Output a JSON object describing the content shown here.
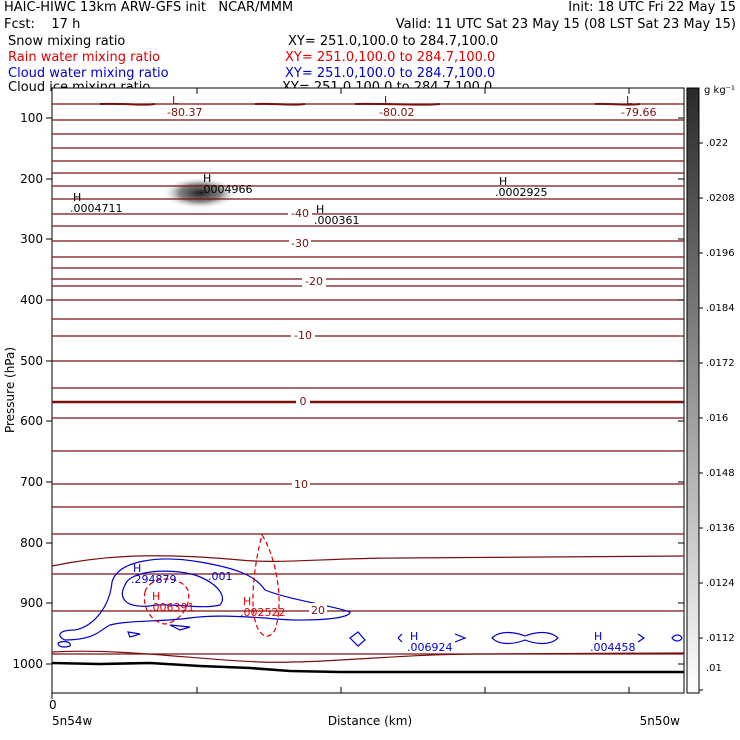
{
  "header": {
    "title": "HAIC-HIWC 13km ARW-GFS init   NCAR/MMM",
    "init": "Init: 18 UTC Fri 22 May 15",
    "fcst": "Fcst:    17 h",
    "valid": "Valid: 11 UTC Sat 23 May 15 (08 LST Sat 23 May 15)",
    "fields": [
      {
        "label": "Snow mixing ratio",
        "xy": "XY= 251.0,100.0 to 284.7,100.0",
        "color": "#000000"
      },
      {
        "label": "Rain water mixing ratio",
        "xy": "XY= 251.0,100.0 to 284.7,100.0",
        "color": "#e00000"
      },
      {
        "label": "Cloud water mixing ratio",
        "xy": "XY= 251.0,100.0 to 284.7,100.0",
        "color": "#0000cc"
      },
      {
        "label": "Cloud ice mixing ratio",
        "xy": "XY= 251.0,100.0 to 284.7,100.0",
        "color": "#000000"
      }
    ]
  },
  "chart_data": {
    "type": "cross-section",
    "xlabel": "Distance (km)",
    "ylabel": "Pressure (hPa)",
    "x_ticks": [
      "0",
      "5n54w",
      "5n50w"
    ],
    "y_ticks": [
      100,
      200,
      300,
      400,
      500,
      600,
      700,
      800,
      900,
      1000
    ],
    "ylim": [
      1050,
      70
    ],
    "colorbar": {
      "unit": "g kg⁻¹",
      "ticks": [
        ".022",
        ".0208",
        ".0196",
        ".0184",
        ".0172",
        ".016",
        ".0148",
        ".0136",
        ".0124",
        ".0112",
        ".01"
      ]
    },
    "temperature_labels": [
      {
        "text": "-40",
        "p": 258
      },
      {
        "text": "-30",
        "p": 303
      },
      {
        "text": "-20",
        "p": 365
      },
      {
        "text": "-10",
        "p": 453
      },
      {
        "text": "0",
        "p": 566
      },
      {
        "text": "10",
        "p": 701
      },
      {
        "text": "20",
        "p": 910
      }
    ],
    "low_labels": [
      "-80.37",
      "-80.02",
      "-79.66"
    ],
    "high_labels_black": [
      ".0004966",
      ".0004711",
      ".000361",
      ".0002925"
    ],
    "cloud_labels_blue": [
      ".294879",
      ".001",
      ".006924",
      ".004458"
    ],
    "rain_labels_red": [
      ".006391",
      ".002522"
    ],
    "H": "H",
    "L": "L"
  }
}
